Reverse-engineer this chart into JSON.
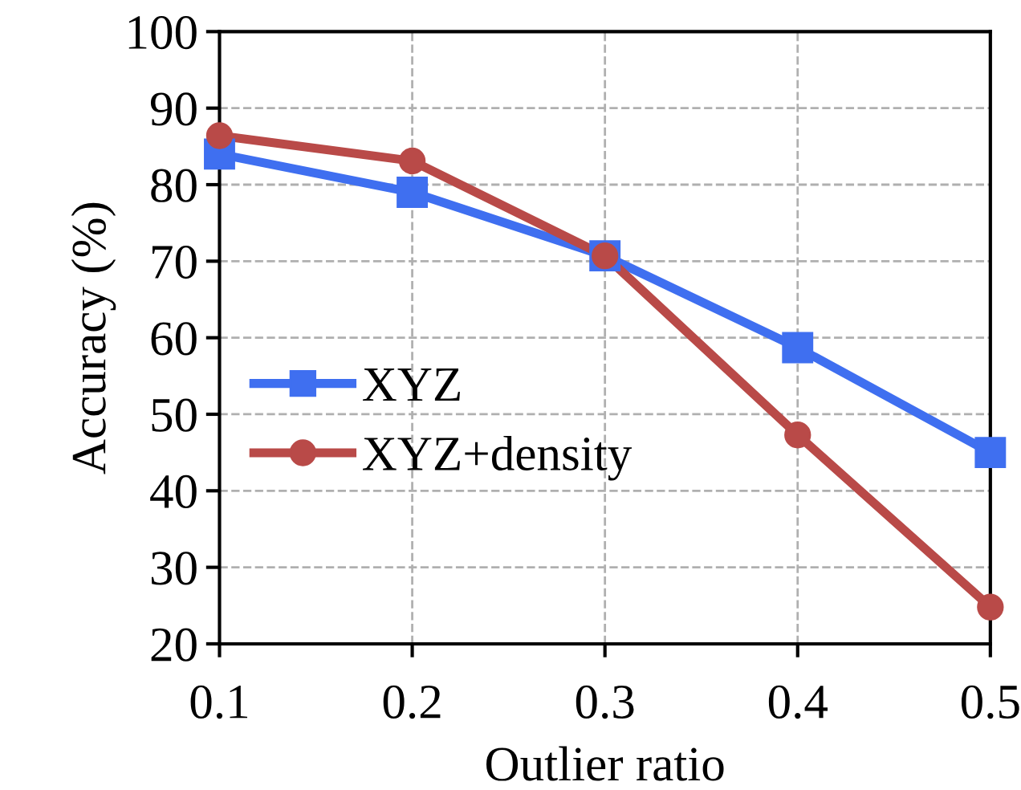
{
  "chart_data": {
    "type": "line",
    "xlabel": "Outlier ratio",
    "ylabel": "Accuracy (%)",
    "x": [
      0.1,
      0.2,
      0.3,
      0.4,
      0.5
    ],
    "series": [
      {
        "name": "XYZ",
        "color": "#3f6ff0",
        "marker": "square",
        "values": [
          84.0,
          79.0,
          70.7,
          58.7,
          45.0
        ]
      },
      {
        "name": "XYZ+density",
        "color": "#b94a48",
        "marker": "circle",
        "values": [
          86.4,
          83.1,
          70.7,
          47.3,
          24.8
        ]
      }
    ],
    "xlim": [
      0.1,
      0.5
    ],
    "xticks": [
      0.1,
      0.2,
      0.3,
      0.4,
      0.5
    ],
    "ylim": [
      20,
      100
    ],
    "yticks": [
      20,
      30,
      40,
      50,
      60,
      70,
      80,
      90,
      100
    ],
    "grid": true,
    "legend": "center left",
    "line_style": "solid"
  }
}
